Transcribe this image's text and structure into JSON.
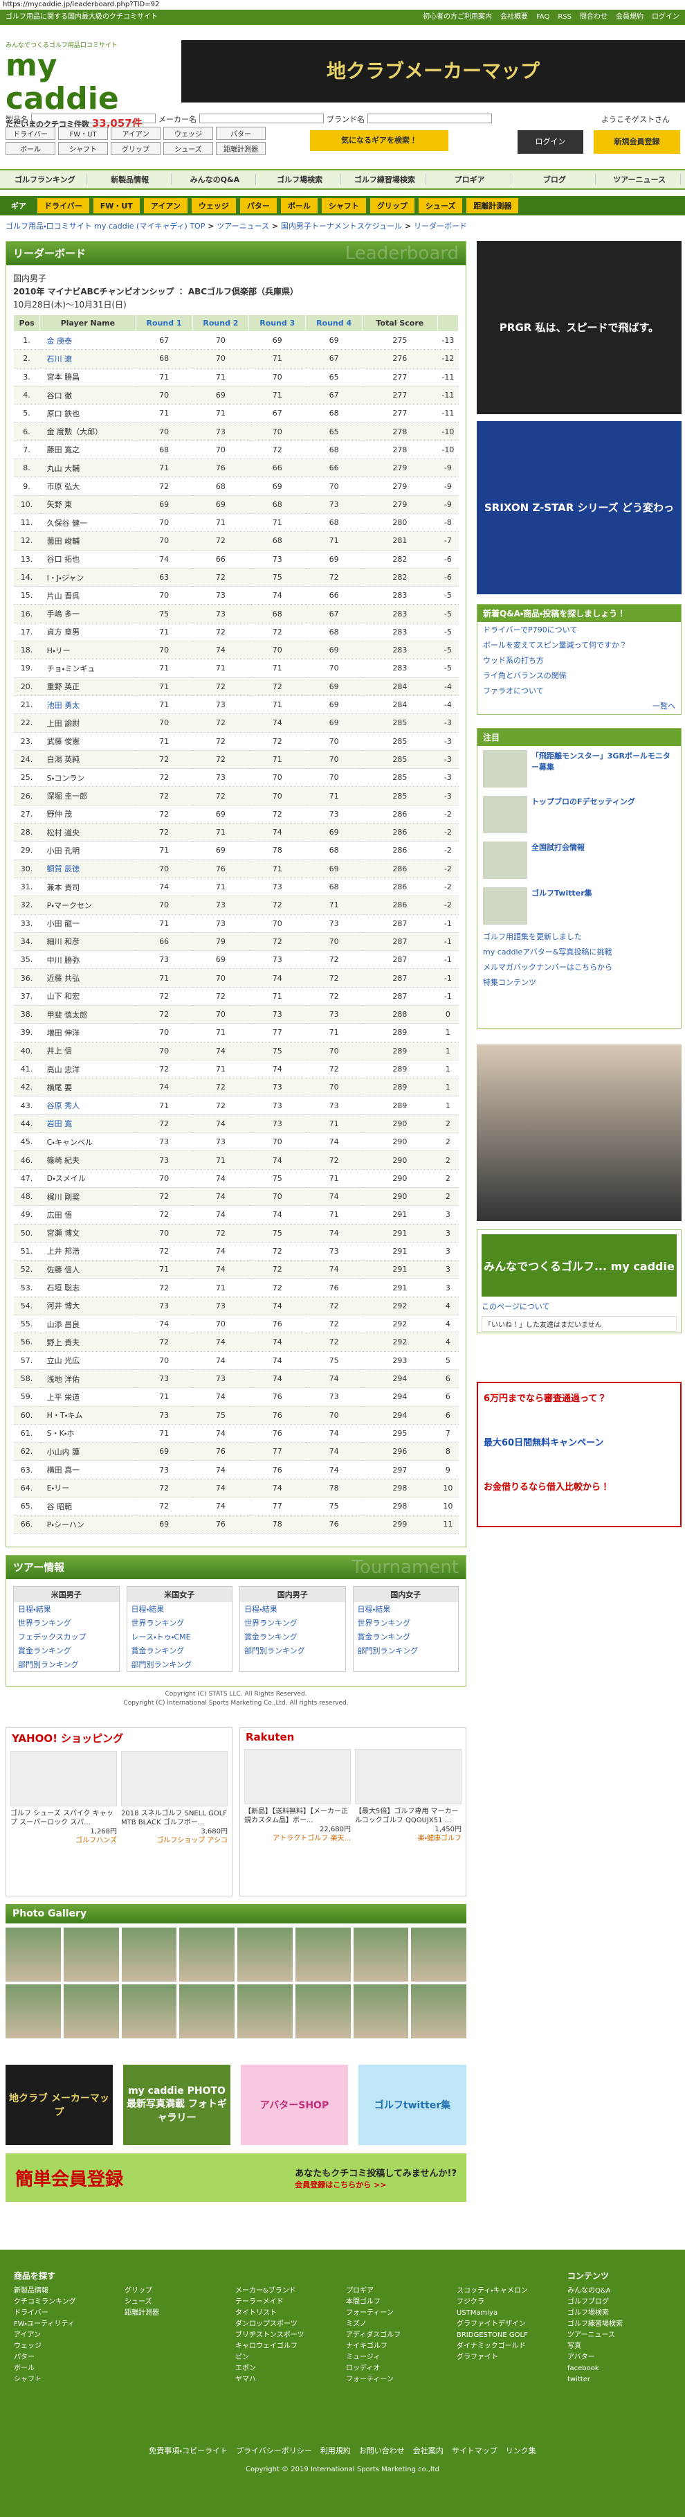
{
  "browser": {
    "url": "https://mycaddie.jp/leaderboard.php?TID=92"
  },
  "header": {
    "top_intro": "ゴルフ用品に関する国内最大級のクチコミサイト",
    "top_links": [
      "初心者の方ご利用案内",
      "会社概要",
      "FAQ",
      "RSS",
      "問合わせ",
      "会員規約",
      "ログイン"
    ],
    "tagline": "みんなでつくるゴルフ用品口コミサイト",
    "logo": "my caddie",
    "count_label": "ただいまのクチコミ件数",
    "count": "33,057件",
    "banner": "地クラブメーカーマップ"
  },
  "search": {
    "labels": [
      "製品名",
      "メーカー名",
      "ブランド名"
    ],
    "buttons": [
      "ドライバー",
      "FW・UT",
      "アイアン",
      "ウェッジ",
      "パター",
      "ボール",
      "シャフト",
      "グリップ",
      "シューズ",
      "距離計測器"
    ],
    "submit": "気になるギアを検索！",
    "guest": "ようこそゲストさん",
    "login": "ログイン",
    "register": "新規会員登録"
  },
  "nav": [
    "ゴルフランキング",
    "新製品情報",
    "みんなのQ&A",
    "ゴルフ場検索",
    "ゴルフ練習場検索",
    "プロギア",
    "ブログ",
    "ツアーニュース"
  ],
  "subnav": {
    "label": "ギア",
    "items": [
      "ドライバー",
      "FW・UT",
      "アイアン",
      "ウェッジ",
      "パター",
      "ボール",
      "シャフト",
      "グリップ",
      "シューズ",
      "距離計測器"
    ]
  },
  "breadcrumb": [
    "ゴルフ用品・口コミサイト my caddie (マイキャディ) TOP",
    "ツアーニュース",
    "国内男子トーナメントスケジュール",
    "リーダーボード"
  ],
  "leaderboard": {
    "heading": "リーダーボード",
    "watermark": "Leaderboard",
    "tour": "国内男子",
    "title": "2010年 マイナビABCチャンピオンシップ ： ABCゴルフ倶楽部（兵庫県）",
    "dates": "10月28日(木)〜10月31日(日)",
    "columns": [
      "Pos",
      "Player Name",
      "Round 1",
      "Round 2",
      "Round 3",
      "Round 4",
      "Total Score",
      ""
    ],
    "rows": [
      [
        "1.",
        "金 庚泰",
        67,
        70,
        69,
        69,
        275,
        -13
      ],
      [
        "2.",
        "石川 遼",
        68,
        70,
        71,
        67,
        276,
        -12
      ],
      [
        "3.",
        "宮本 勝昌",
        71,
        71,
        70,
        65,
        277,
        -11
      ],
      [
        "4.",
        "谷口 徹",
        70,
        69,
        71,
        67,
        277,
        -11
      ],
      [
        "5.",
        "原口 鉄也",
        71,
        71,
        67,
        68,
        277,
        -11
      ],
      [
        "6.",
        "金 度勲（大邱）",
        70,
        73,
        70,
        65,
        278,
        -10
      ],
      [
        "7.",
        "藤田 寛之",
        68,
        70,
        72,
        68,
        278,
        -10
      ],
      [
        "8.",
        "丸山 大輔",
        71,
        76,
        66,
        66,
        279,
        -9
      ],
      [
        "9.",
        "市原 弘大",
        72,
        68,
        69,
        70,
        279,
        -9
      ],
      [
        "10.",
        "矢野 東",
        69,
        69,
        68,
        73,
        279,
        -9
      ],
      [
        "11.",
        "久保谷 健一",
        70,
        71,
        71,
        68,
        280,
        -8
      ],
      [
        "12.",
        "薗田 峻輔",
        70,
        72,
        68,
        71,
        281,
        -7
      ],
      [
        "13.",
        "谷口 拓也",
        74,
        66,
        73,
        69,
        282,
        -6
      ],
      [
        "14.",
        "I・J・ジャン",
        63,
        72,
        75,
        72,
        282,
        -6
      ],
      [
        "15.",
        "片山 晋呉",
        70,
        73,
        74,
        66,
        283,
        -5
      ],
      [
        "16.",
        "手嶋 多一",
        75,
        73,
        68,
        67,
        283,
        -5
      ],
      [
        "17.",
        "貞方 章男",
        71,
        72,
        72,
        68,
        283,
        -5
      ],
      [
        "18.",
        "H・リー",
        70,
        74,
        70,
        69,
        283,
        -5
      ],
      [
        "19.",
        "チョ・ミンギュ",
        71,
        71,
        71,
        70,
        283,
        -5
      ],
      [
        "20.",
        "重野 英正",
        71,
        72,
        72,
        69,
        284,
        -4
      ],
      [
        "21.",
        "池田 勇太",
        71,
        73,
        71,
        69,
        284,
        -4
      ],
      [
        "22.",
        "上田 諭尉",
        70,
        72,
        74,
        69,
        285,
        -3
      ],
      [
        "23.",
        "武藤 俊憲",
        71,
        72,
        72,
        70,
        285,
        -3
      ],
      [
        "24.",
        "白潟 英純",
        72,
        72,
        71,
        70,
        285,
        -3
      ],
      [
        "25.",
        "S・コンラン",
        72,
        73,
        70,
        70,
        285,
        -3
      ],
      [
        "26.",
        "深堀 圭一郎",
        72,
        72,
        70,
        71,
        285,
        -3
      ],
      [
        "27.",
        "野仲 茂",
        72,
        69,
        72,
        73,
        286,
        -2
      ],
      [
        "28.",
        "松村 道央",
        72,
        71,
        74,
        69,
        286,
        -2
      ],
      [
        "29.",
        "小田 孔明",
        71,
        69,
        78,
        68,
        286,
        -2
      ],
      [
        "30.",
        "額賀 辰徳",
        70,
        76,
        71,
        69,
        286,
        -2
      ],
      [
        "31.",
        "兼本 貴司",
        74,
        71,
        73,
        68,
        286,
        -2
      ],
      [
        "32.",
        "P・マークセン",
        70,
        73,
        72,
        71,
        286,
        -2
      ],
      [
        "33.",
        "小田 龍一",
        71,
        73,
        70,
        73,
        287,
        -1
      ],
      [
        "34.",
        "細川 和彦",
        66,
        79,
        72,
        70,
        287,
        -1
      ],
      [
        "35.",
        "中川 勝弥",
        73,
        69,
        73,
        72,
        287,
        -1
      ],
      [
        "36.",
        "近藤 共弘",
        71,
        70,
        74,
        72,
        287,
        -1
      ],
      [
        "37.",
        "山下 和宏",
        72,
        72,
        71,
        72,
        287,
        -1
      ],
      [
        "38.",
        "甲斐 慎太郎",
        72,
        70,
        73,
        73,
        288,
        0
      ],
      [
        "39.",
        "増田 伸洋",
        70,
        71,
        77,
        71,
        289,
        1
      ],
      [
        "40.",
        "井上 信",
        70,
        74,
        75,
        70,
        289,
        1
      ],
      [
        "41.",
        "高山 忠洋",
        72,
        71,
        74,
        72,
        289,
        1
      ],
      [
        "42.",
        "横尾 要",
        74,
        72,
        73,
        70,
        289,
        1
      ],
      [
        "43.",
        "谷原 秀人",
        71,
        72,
        73,
        73,
        289,
        1
      ],
      [
        "44.",
        "岩田 寛",
        72,
        74,
        73,
        71,
        290,
        2
      ],
      [
        "45.",
        "C・キャンベル",
        73,
        73,
        70,
        74,
        290,
        2
      ],
      [
        "46.",
        "篠崎 紀夫",
        73,
        71,
        74,
        72,
        290,
        2
      ],
      [
        "47.",
        "D・スメイル",
        70,
        74,
        75,
        71,
        290,
        2
      ],
      [
        "48.",
        "梶川 剛奨",
        72,
        74,
        70,
        74,
        290,
        2
      ],
      [
        "49.",
        "広田 悟",
        72,
        74,
        74,
        71,
        291,
        3
      ],
      [
        "50.",
        "宮瀬 博文",
        70,
        72,
        75,
        74,
        291,
        3
      ],
      [
        "51.",
        "上井 邦浩",
        72,
        74,
        72,
        73,
        291,
        3
      ],
      [
        "52.",
        "佐藤 信人",
        71,
        74,
        72,
        74,
        291,
        3
      ],
      [
        "53.",
        "石垣 聡志",
        72,
        71,
        72,
        76,
        291,
        3
      ],
      [
        "54.",
        "河井 博大",
        73,
        73,
        74,
        72,
        292,
        4
      ],
      [
        "55.",
        "山添 昌良",
        74,
        70,
        76,
        72,
        292,
        4
      ],
      [
        "56.",
        "野上 貴夫",
        72,
        74,
        74,
        72,
        292,
        4
      ],
      [
        "57.",
        "立山 光広",
        70,
        74,
        74,
        75,
        293,
        5
      ],
      [
        "58.",
        "浅地 洋佑",
        73,
        73,
        74,
        74,
        294,
        6
      ],
      [
        "59.",
        "上平 栄道",
        71,
        74,
        76,
        73,
        294,
        6
      ],
      [
        "60.",
        "H・T・キム",
        73,
        75,
        76,
        70,
        294,
        6
      ],
      [
        "61.",
        "S・K・ホ",
        71,
        74,
        76,
        74,
        295,
        7
      ],
      [
        "62.",
        "小山内 護",
        69,
        76,
        77,
        74,
        296,
        8
      ],
      [
        "63.",
        "横田 真一",
        73,
        74,
        76,
        74,
        297,
        9
      ],
      [
        "64.",
        "E・リー",
        72,
        74,
        74,
        78,
        298,
        10
      ],
      [
        "65.",
        "谷 昭範",
        72,
        74,
        77,
        75,
        298,
        10
      ],
      [
        "66.",
        "P・シーハン",
        69,
        76,
        78,
        76,
        299,
        11
      ]
    ]
  },
  "tour_info": {
    "heading": "ツアー情報",
    "watermark": "Tournament",
    "boxes": [
      {
        "title": "米国男子",
        "links": [
          "日程・結果",
          "世界ランキング",
          "フェデックスカップ",
          "賞金ランキング",
          "部門別ランキング"
        ]
      },
      {
        "title": "米国女子",
        "links": [
          "日程・結果",
          "世界ランキング",
          "レース・トゥ・CME",
          "賞金ランキング",
          "部門別ランキング"
        ]
      },
      {
        "title": "国内男子",
        "links": [
          "日程・結果",
          "世界ランキング",
          "賞金ランキング",
          "部門別ランキング"
        ]
      },
      {
        "title": "国内女子",
        "links": [
          "日程・結果",
          "世界ランキング",
          "賞金ランキング",
          "部門別ランキング"
        ]
      }
    ]
  },
  "copyright": [
    "Copyright (C) STATS LLC. All Rights Reserved.",
    "Copyright (C) International Sports Marketing Co.,Ltd. All rights reserved."
  ],
  "shopping_yahoo": {
    "heading": "YAHOO! ショッピング",
    "items": [
      {
        "name": "ゴルフ シューズ スパイク キャップ スーパーロック スパ...",
        "price": "1,268円",
        "store": "ゴルフハンズ"
      },
      {
        "name": "2018 スネルゴルフ SNELL GOLF MTB BLACK ゴルフボー...",
        "price": "3,680円",
        "store": "ゴルフショップ アシコ"
      }
    ]
  },
  "shopping_rakuten": {
    "heading": "Rakuten",
    "items": [
      {
        "name": "【新品】【送料無料】【メーカー正規カスタム品】ボー...",
        "price": "22,680円",
        "store": "アトラクトゴルフ 楽天..."
      },
      {
        "name": "【最大5倍】ゴルフ専用 マーカー ルコックゴルフ QQOUJX51 ...",
        "price": "1,450円",
        "store": "楽・健康ゴルフ"
      }
    ]
  },
  "gallery": {
    "heading": "Photo Gallery"
  },
  "banners": [
    "地クラブ メーカーマップ",
    "my caddie PHOTO 最新写真満載 フォトギャラリー",
    "アバターSHOP",
    "ゴルフtwitter集"
  ],
  "register": {
    "title": "簡単会員登録",
    "tagline": "あなたもクチコミ投稿してみませんか!?",
    "link": "会員登録はこちらから >>"
  },
  "sidebar": {
    "ad1": "PRGR 私は、スピードで飛ばす。",
    "ad2": "SRIXON Z-STAR シリーズ どう変わった?",
    "news": {
      "heading": "新着Q&A・商品・投稿を探しましょう！",
      "links": [
        "ドライバーでP790について",
        "ボールを変えてスピン量減って何ですか？",
        "ウッド系の打ち方",
        "ライ角とバランスの関係",
        "ファラオについて"
      ],
      "more": "一覧へ"
    },
    "featured": {
      "heading": "注目",
      "items": [
        "「飛距離モンスター」3GRボールモニター募集",
        "トップブロのFデセッティング",
        "全国試打会情報",
        "ゴルフTwitter集"
      ]
    },
    "links": [
      "ゴルフ用語集を更新しました",
      "my caddieアバター&写真投稿に挑戦",
      "メルマガバックナンバーはこちらから",
      "特集コンテンツ"
    ],
    "mycaddie_box": "みんなでつくるゴルフ... my caddie",
    "fb": "このページについて",
    "fb_note": "「いいね！」した友達はまだいません",
    "text_ad": [
      "6万円までなら審査通過って？",
      "最大60日間無料キャンペーン",
      "お金借りるなら借入比較から！"
    ]
  },
  "footer": {
    "columns": [
      {
        "title": "商品を探す",
        "links": [
          "新製品情報",
          "クチコミランキング",
          "ドライバー",
          "FW・ユーティリティ",
          "アイアン",
          "ウェッジ",
          "パター",
          "ボール",
          "シャフト"
        ]
      },
      {
        "title": "",
        "links": [
          "グリップ",
          "シューズ",
          "距離計測器"
        ]
      },
      {
        "title": "",
        "links": [
          "メーカー&ブランド",
          "テーラーメイド",
          "タイトリスト",
          "ダンロップスポーツ",
          "ブリヂストンスポーツ",
          "キャロウェイゴルフ",
          "ピン",
          "エポン",
          "ヤマハ"
        ]
      },
      {
        "title": "",
        "links": [
          "プロギア",
          "本間ゴルフ",
          "フォーティーン",
          "ミズノ",
          "アディダスゴルフ",
          "ナイキゴルフ",
          "ミュージィ",
          "ロッディオ",
          "フォーティーン"
        ]
      },
      {
        "title": "",
        "links": [
          "スコッティ・キャメロン",
          "フジクラ",
          "USTMamiya",
          "グラファイトデザイン",
          "BRIDGESTONE GOLF",
          "ダイナミックゴールド",
          "グラファイト"
        ]
      },
      {
        "title": "コンテンツ",
        "links": [
          "みんなのQ&A",
          "ゴルフブログ",
          "ゴルフ場検索",
          "ゴルフ練習場検索",
          "ツアーニュース",
          "写真",
          "アバター",
          "facebook",
          "twitter"
        ]
      }
    ],
    "bottom": [
      "免責事項・コピーライト",
      "プライバシーポリシー",
      "利用規約",
      "お問い合わせ",
      "会社案内",
      "サイトマップ",
      "リンク集"
    ],
    "copyright": "Copyright © 2019 International Sports Marketing co.,ltd"
  }
}
